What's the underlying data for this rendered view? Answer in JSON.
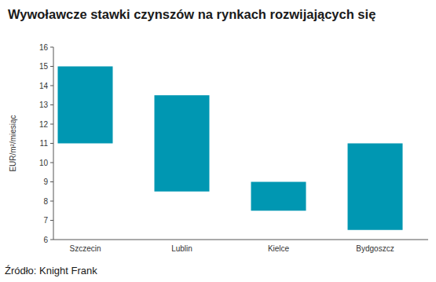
{
  "chart_data": {
    "type": "range_bar",
    "title": "Wywoławcze stawki czynszów na rynkach rozwijających się",
    "y_label": "EUR/m²/miesiąc",
    "source": "Źródło: Knight Frank",
    "categories": [
      "Szczecin",
      "Lublin",
      "Kielce",
      "Bydgoszcz"
    ],
    "low": [
      11,
      8.5,
      7.5,
      6.5
    ],
    "high": [
      15,
      13.5,
      9,
      11
    ],
    "color": "#0097b2",
    "ylim": [
      6,
      16
    ],
    "yticks": [
      6,
      7,
      8,
      9,
      10,
      11,
      12,
      13,
      14,
      15,
      16
    ],
    "grid": false
  }
}
